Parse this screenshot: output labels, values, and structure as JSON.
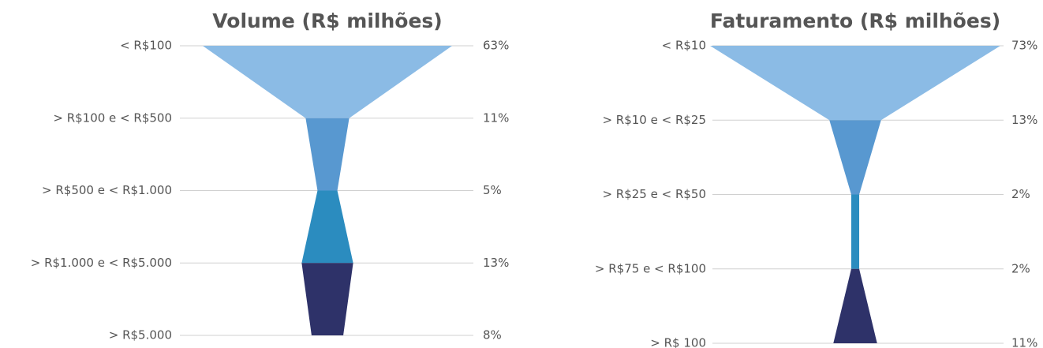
{
  "chart_data": [
    {
      "type": "funnel",
      "title": "Volume (R$ milhões)",
      "categories": [
        "< R$100",
        "> R$100 e < R$500",
        "> R$500 e < R$1.000",
        "> R$1.000 e < R$5.000",
        "> R$5.000"
      ],
      "values": [
        63,
        11,
        5,
        13,
        8
      ],
      "value_labels": [
        "63%",
        "11%",
        "5%",
        "13%",
        "8%"
      ],
      "colors": [
        "#8bbbe5",
        "#5898d0",
        "#2b8cbf",
        "#2e3269"
      ]
    },
    {
      "type": "funnel",
      "title": "Faturamento (R$ milhões)",
      "categories": [
        "< R$10",
        "> R$10 e < R$25",
        "> R$25 e < R$50",
        "> R$75 e < R$100",
        "> R$ 100"
      ],
      "values": [
        73,
        13,
        2,
        2,
        11
      ],
      "value_labels": [
        "73%",
        "13%",
        "2%",
        "2%",
        "11%"
      ],
      "colors": [
        "#8bbbe5",
        "#5898d0",
        "#2b8cbf",
        "#2e3269"
      ]
    }
  ]
}
